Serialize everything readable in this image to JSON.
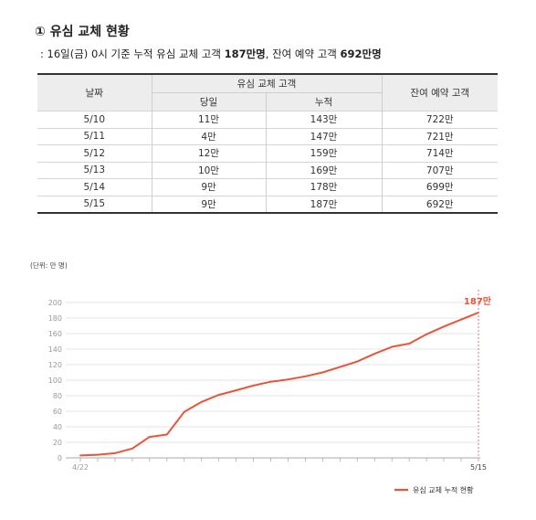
{
  "heading": "① 유심 교체 현황",
  "subheading": {
    "prefix": ": 16일(금) 0시 기준 누적 유심 교체 고객 ",
    "cumulative": "187만명",
    "middle": ", 잔여 예약 고객 ",
    "reserved": "692만명"
  },
  "table": {
    "col_date": "날짜",
    "col_group": "유심 교체 고객",
    "col_day": "당일",
    "col_cumulative": "누적",
    "col_reserved": "잔여 예약 고객",
    "rows": [
      {
        "date": "5/10",
        "day": "11만",
        "cumulative": "143만",
        "reserved": "722만"
      },
      {
        "date": "5/11",
        "day": "4만",
        "cumulative": "147만",
        "reserved": "721만"
      },
      {
        "date": "5/12",
        "day": "12만",
        "cumulative": "159만",
        "reserved": "714만"
      },
      {
        "date": "5/13",
        "day": "10만",
        "cumulative": "169만",
        "reserved": "707만"
      },
      {
        "date": "5/14",
        "day": "9만",
        "cumulative": "178만",
        "reserved": "699만"
      },
      {
        "date": "5/15",
        "day": "9만",
        "cumulative": "187만",
        "reserved": "692만"
      }
    ]
  },
  "chart_data": {
    "type": "line",
    "unit_label": "(단위: 만 명)",
    "ylim": [
      0,
      200
    ],
    "yticks": [
      0,
      20,
      40,
      60,
      80,
      100,
      120,
      140,
      160,
      180,
      200
    ],
    "x_tick_labels": [
      "4/22",
      "5/15"
    ],
    "x": [
      "4/22",
      "4/23",
      "4/24",
      "4/25",
      "4/26",
      "4/27",
      "4/28",
      "4/29",
      "4/30",
      "5/1",
      "5/2",
      "5/3",
      "5/4",
      "5/5",
      "5/6",
      "5/7",
      "5/8",
      "5/9",
      "5/10",
      "5/11",
      "5/12",
      "5/13",
      "5/14",
      "5/15"
    ],
    "series": [
      {
        "name": "유심 교체 누적 현황",
        "color": "#e8553a",
        "values": [
          3,
          4,
          6,
          12,
          27,
          30,
          59,
          72,
          81,
          87,
          93,
          98,
          101,
          105,
          110,
          117,
          124,
          134,
          143,
          147,
          159,
          169,
          178,
          187
        ]
      }
    ],
    "end_label": "187만",
    "grid": "horizontal",
    "legend_position": "bottom-right",
    "gridline_color": "#dddddd",
    "axis_color": "#aaaaaa",
    "tick_color": "#999999"
  }
}
